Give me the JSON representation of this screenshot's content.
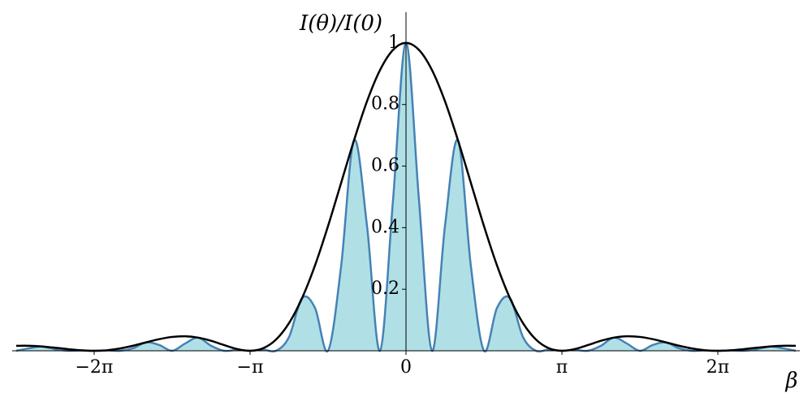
{
  "chart_data": {
    "type": "line",
    "ylabel": "I(θ)/I(0)",
    "xlabel": "β",
    "x": [
      -7.854,
      -7.5922,
      -7.3304,
      -7.0686,
      -6.8068,
      -6.545,
      -6.2832,
      -6.0214,
      -5.7596,
      -5.4978,
      -5.236,
      -4.9742,
      -4.7124,
      -4.4506,
      -4.1888,
      -3.927,
      -3.6652,
      -3.4034,
      -3.1416,
      -2.8798,
      -2.618,
      -2.3562,
      -2.0944,
      -1.8326,
      -1.5708,
      -1.309,
      -1.0472,
      -0.7854,
      -0.5236,
      -0.2618,
      0,
      0.2618,
      0.5236,
      0.7854,
      1.0472,
      1.309,
      1.5708,
      1.8326,
      2.0944,
      2.3562,
      2.618,
      2.8798,
      3.1416,
      3.4034,
      3.6652,
      3.927,
      4.1888,
      4.4506,
      4.7124,
      4.9742,
      5.236,
      5.4978,
      5.7596,
      6.0214,
      6.2832,
      6.545,
      6.8068,
      7.0686,
      7.3304,
      7.5922,
      7.854
    ],
    "series": [
      {
        "color": "#000000",
        "values": [
          0.0162,
          0.0162,
          0.014,
          0.01,
          0.0054,
          0.0016,
          0,
          0.0018,
          0.0075,
          0.0165,
          0.0274,
          0.0377,
          0.045,
          0.0471,
          0.0427,
          0.0324,
          0.0186,
          0.0058,
          0,
          0.0081,
          0.0365,
          0.0901,
          0.171,
          0.2778,
          0.4053,
          0.5445,
          0.6839,
          0.8106,
          0.9119,
          0.9773,
          1,
          0.9773,
          0.9119,
          0.8106,
          0.6839,
          0.5445,
          0.4053,
          0.2778,
          0.171,
          0.0901,
          0.0365,
          0.0081,
          0,
          0.0058,
          0.0186,
          0.0324,
          0.0427,
          0.0471,
          0.045,
          0.0377,
          0.0274,
          0.0165,
          0.0075,
          0.0018,
          0,
          0.0016,
          0.0054,
          0.01,
          0.014,
          0.0162,
          0.0162
        ]
      },
      {
        "color": "#4682b4",
        "fill": "#b0e0e6",
        "values": [
          0,
          0.0081,
          0.014,
          0.005,
          0,
          0.0008,
          0,
          0.0009,
          0,
          0.0083,
          0.0274,
          0.0189,
          0,
          0.0236,
          0.0427,
          0.0162,
          0,
          0.0029,
          0,
          0.004,
          0,
          0.045,
          0.171,
          0.1389,
          0,
          0.2723,
          0.6839,
          0.4053,
          0,
          0.4887,
          1,
          0.4887,
          0,
          0.4053,
          0.6839,
          0.2723,
          0,
          0.1389,
          0.171,
          0.045,
          0,
          0.004,
          0,
          0.0029,
          0,
          0.0162,
          0.0427,
          0.0236,
          0,
          0.0189,
          0.0274,
          0.0083,
          0,
          0.0009,
          0,
          0.0008,
          0,
          0.005,
          0.014,
          0.0081,
          0
        ]
      }
    ],
    "xlim": [
      -7.935,
      7.935
    ],
    "ylim": [
      0,
      1.1
    ],
    "xticks": [
      {
        "value": -6.2832,
        "label": "−2π"
      },
      {
        "value": -3.1416,
        "label": "−π"
      },
      0,
      {
        "value": 3.1416,
        "label": "π"
      },
      {
        "value": 6.2832,
        "label": "2π"
      }
    ],
    "yticks": [
      0.2,
      0.4,
      0.6,
      0.8,
      1
    ],
    "grid": false
  }
}
